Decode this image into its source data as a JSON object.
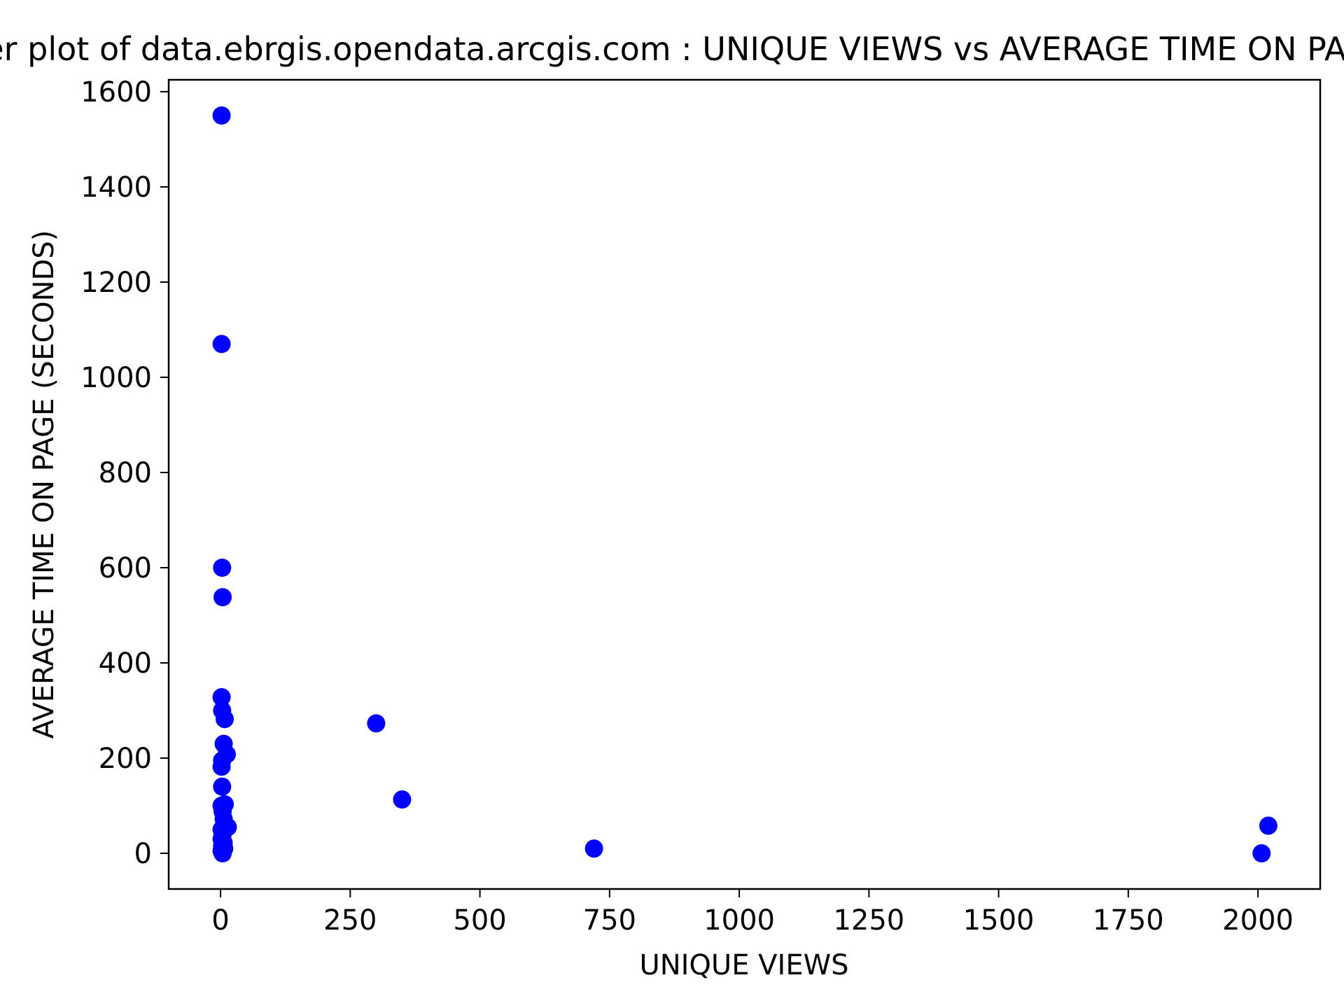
{
  "chart_data": {
    "type": "scatter",
    "title": "Scatter plot of data.ebrgis.opendata.arcgis.com : UNIQUE VIEWS vs AVERAGE TIME ON PAGE (SECONDS)",
    "xlabel": "UNIQUE VIEWS",
    "ylabel": "AVERAGE TIME ON PAGE (SECONDS)",
    "xlim": [
      -100,
      2120
    ],
    "ylim": [
      -75,
      1625
    ],
    "xticks": [
      0,
      250,
      500,
      750,
      1000,
      1250,
      1500,
      1750,
      2000
    ],
    "yticks": [
      0,
      200,
      400,
      600,
      800,
      1000,
      1200,
      1400,
      1600
    ],
    "grid": false,
    "marker_color": "#0000ff",
    "series": [
      {
        "points": [
          {
            "x": 2,
            "y": 1550
          },
          {
            "x": 2,
            "y": 1070
          },
          {
            "x": 3,
            "y": 600
          },
          {
            "x": 4,
            "y": 538
          },
          {
            "x": 2,
            "y": 328
          },
          {
            "x": 3,
            "y": 300
          },
          {
            "x": 8,
            "y": 282
          },
          {
            "x": 6,
            "y": 230
          },
          {
            "x": 12,
            "y": 208
          },
          {
            "x": 3,
            "y": 195
          },
          {
            "x": 2,
            "y": 182
          },
          {
            "x": 3,
            "y": 140
          },
          {
            "x": 8,
            "y": 103
          },
          {
            "x": 2,
            "y": 100
          },
          {
            "x": 4,
            "y": 88
          },
          {
            "x": 6,
            "y": 72
          },
          {
            "x": 14,
            "y": 55
          },
          {
            "x": 2,
            "y": 50
          },
          {
            "x": 4,
            "y": 40
          },
          {
            "x": 2,
            "y": 30
          },
          {
            "x": 6,
            "y": 22
          },
          {
            "x": 3,
            "y": 15
          },
          {
            "x": 7,
            "y": 10
          },
          {
            "x": 2,
            "y": 5
          },
          {
            "x": 4,
            "y": 0
          },
          {
            "x": 300,
            "y": 273
          },
          {
            "x": 350,
            "y": 113
          },
          {
            "x": 720,
            "y": 10
          },
          {
            "x": 2020,
            "y": 58
          },
          {
            "x": 2007,
            "y": 0
          }
        ]
      }
    ]
  }
}
